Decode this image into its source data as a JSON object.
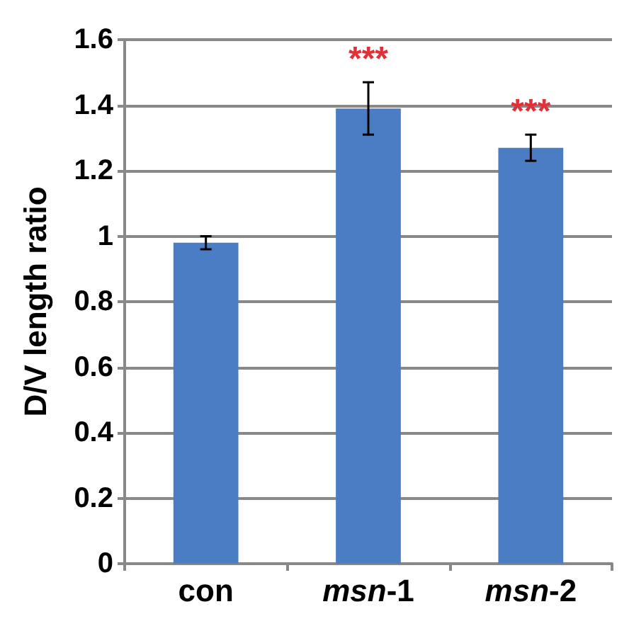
{
  "chart_data": {
    "type": "bar",
    "ylabel": "D/V length ratio",
    "categories": [
      "con",
      "msn-1",
      "msn-2"
    ],
    "values": [
      0.98,
      1.39,
      1.27
    ],
    "errors": [
      0.02,
      0.08,
      0.04
    ],
    "color": "#4a7dc4",
    "ylim": [
      0,
      1.6
    ],
    "yticks": [
      0,
      0.2,
      0.4,
      0.6,
      0.8,
      1,
      1.2,
      1.4,
      1.6
    ],
    "grid": "y",
    "annotations": [
      {
        "text": "***",
        "x": "msn-1",
        "y": 1.47
      },
      {
        "text": "***",
        "x": "msn-2",
        "y": 1.31
      }
    ]
  }
}
